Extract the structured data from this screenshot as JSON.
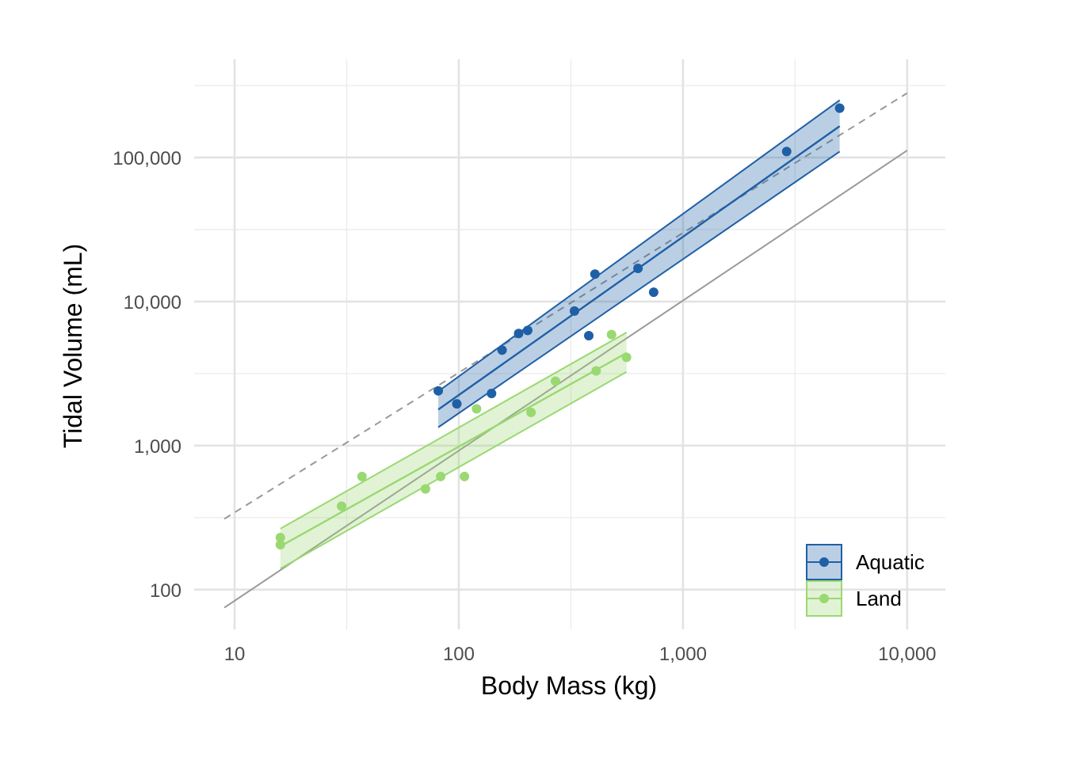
{
  "chart_data": {
    "type": "scatter",
    "xlabel": "Body Mass (kg)",
    "ylabel": "Tidal Volume (mL)",
    "x_scale": "log10",
    "y_scale": "log10",
    "xlim": [
      6.6,
      14800
    ],
    "ylim": [
      53,
      480000
    ],
    "x_ticks": [
      {
        "value": 10,
        "label": "10"
      },
      {
        "value": 100,
        "label": "100"
      },
      {
        "value": 1000,
        "label": "1,000"
      },
      {
        "value": 10000,
        "label": "10,000"
      }
    ],
    "y_ticks": [
      {
        "value": 100,
        "label": "100"
      },
      {
        "value": 1000,
        "label": "1,000"
      },
      {
        "value": 10000,
        "label": "10,000"
      },
      {
        "value": 100000,
        "label": "100,000"
      }
    ],
    "grid": true,
    "legend_position": "bottom-right",
    "series": [
      {
        "name": "Aquatic",
        "color": "#1f5fa6",
        "fill": "#1f5fa6",
        "points": [
          [
            81,
            2400
          ],
          [
            98,
            1950
          ],
          [
            140,
            2300
          ],
          [
            156,
            4600
          ],
          [
            185,
            6000
          ],
          [
            203,
            6300
          ],
          [
            328,
            8600
          ],
          [
            380,
            5800
          ],
          [
            405,
            15500
          ],
          [
            630,
            17000
          ],
          [
            740,
            11600
          ],
          [
            2900,
            110000
          ],
          [
            5000,
            220000
          ]
        ],
        "fit": {
          "x_start": 81,
          "x_end": 5000,
          "y_start": 1780,
          "y_end": 165000
        },
        "band_upper": {
          "y_start": 2380,
          "y_end": 250000
        },
        "band_lower": {
          "y_start": 1340,
          "y_end": 110000
        }
      },
      {
        "name": "Land",
        "color": "#9ad872",
        "fill": "#9ad872",
        "points": [
          [
            16,
            205
          ],
          [
            16,
            230
          ],
          [
            30,
            380
          ],
          [
            37,
            610
          ],
          [
            71,
            500
          ],
          [
            83,
            610
          ],
          [
            106,
            610
          ],
          [
            120,
            1800
          ],
          [
            210,
            1700
          ],
          [
            270,
            2800
          ],
          [
            410,
            3300
          ],
          [
            480,
            5900
          ],
          [
            560,
            4100
          ]
        ],
        "fit": {
          "x_start": 16,
          "x_end": 560,
          "y_start": 200,
          "y_end": 4400
        },
        "band_upper": {
          "y_start": 265,
          "y_end": 6100
        },
        "band_lower": {
          "y_start": 140,
          "y_end": 3250
        }
      }
    ],
    "reference_lines": [
      {
        "style": "solid",
        "color": "#999999",
        "x_start": 9,
        "x_end": 10000,
        "y_start": 75,
        "y_end": 112000
      },
      {
        "style": "dashed",
        "color": "#999999",
        "x_start": 9,
        "x_end": 10000,
        "y_start": 310,
        "y_end": 280000
      }
    ]
  }
}
